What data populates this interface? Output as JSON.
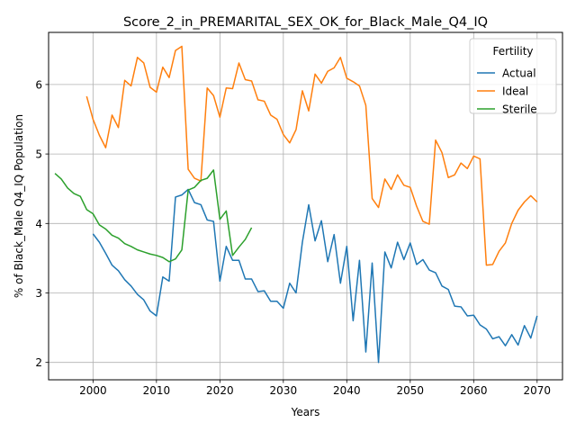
{
  "chart_data": {
    "type": "line",
    "title": "Score_2_in_PREMARITAL_SEX_OK_for_Black_Male_Q4_IQ",
    "xlabel": "Years",
    "ylabel": "% of Black_Male Q4_IQ Population",
    "xlim": [
      1993,
      2074
    ],
    "ylim": [
      1.75,
      6.75
    ],
    "xticks": [
      2000,
      2010,
      2020,
      2030,
      2040,
      2050,
      2060,
      2070
    ],
    "yticks": [
      2,
      3,
      4,
      5,
      6
    ],
    "grid": true,
    "legend": {
      "title": "Fertility",
      "placement": "top-right"
    },
    "series": [
      {
        "name": "Actual",
        "color": "#1f77b4",
        "x": [
          2000,
          2001,
          2002,
          2003,
          2004,
          2005,
          2006,
          2007,
          2008,
          2009,
          2010,
          2011,
          2012,
          2013,
          2014,
          2015,
          2016,
          2017,
          2018,
          2019,
          2020,
          2021,
          2022,
          2023,
          2024,
          2025,
          2026,
          2027,
          2028,
          2029,
          2030,
          2031,
          2032,
          2033,
          2034,
          2035,
          2036,
          2037,
          2038,
          2039,
          2040,
          2041,
          2042,
          2043,
          2044,
          2045,
          2046,
          2047,
          2048,
          2049,
          2050,
          2051,
          2052,
          2053,
          2054,
          2055,
          2056,
          2057,
          2058,
          2059,
          2060,
          2061,
          2062,
          2063,
          2064,
          2065,
          2066,
          2067,
          2068,
          2069,
          2070
        ],
        "y": [
          3.85,
          3.73,
          3.57,
          3.4,
          3.32,
          3.19,
          3.1,
          2.98,
          2.9,
          2.74,
          2.67,
          3.23,
          3.17,
          4.38,
          4.41,
          4.49,
          4.3,
          4.27,
          4.05,
          4.03,
          3.17,
          3.67,
          3.47,
          3.47,
          3.2,
          3.2,
          3.02,
          3.03,
          2.88,
          2.88,
          2.78,
          3.14,
          3.0,
          3.73,
          4.27,
          3.75,
          4.04,
          3.45,
          3.84,
          3.14,
          3.67,
          2.6,
          3.47,
          2.15,
          3.43,
          2.0,
          3.59,
          3.36,
          3.73,
          3.48,
          3.72,
          3.41,
          3.48,
          3.33,
          3.29,
          3.1,
          3.05,
          2.81,
          2.8,
          2.67,
          2.68,
          2.54,
          2.48,
          2.34,
          2.37,
          2.24,
          2.4,
          2.25,
          2.53,
          2.35,
          2.67
        ]
      },
      {
        "name": "Ideal",
        "color": "#ff7f0e",
        "x": [
          1999,
          2000,
          2001,
          2002,
          2003,
          2004,
          2005,
          2006,
          2007,
          2008,
          2009,
          2010,
          2011,
          2012,
          2013,
          2014,
          2015,
          2016,
          2017,
          2018,
          2019,
          2020,
          2021,
          2022,
          2023,
          2024,
          2025,
          2026,
          2027,
          2028,
          2029,
          2030,
          2031,
          2032,
          2033,
          2034,
          2035,
          2036,
          2037,
          2038,
          2039,
          2040,
          2041,
          2042,
          2043,
          2044,
          2045,
          2046,
          2047,
          2048,
          2049,
          2050,
          2051,
          2052,
          2053,
          2054,
          2055,
          2056,
          2057,
          2058,
          2059,
          2060,
          2061,
          2062,
          2063,
          2064,
          2065,
          2066,
          2067,
          2068,
          2069,
          2070
        ],
        "y": [
          5.83,
          5.5,
          5.27,
          5.09,
          5.56,
          5.38,
          6.06,
          5.98,
          6.39,
          6.31,
          5.96,
          5.89,
          6.25,
          6.1,
          6.49,
          6.55,
          4.78,
          4.65,
          4.61,
          5.95,
          5.84,
          5.53,
          5.95,
          5.94,
          6.31,
          6.07,
          6.05,
          5.78,
          5.76,
          5.56,
          5.5,
          5.28,
          5.16,
          5.35,
          5.91,
          5.62,
          6.15,
          6.02,
          6.19,
          6.24,
          6.39,
          6.09,
          6.04,
          5.98,
          5.7,
          4.36,
          4.23,
          4.64,
          4.49,
          4.7,
          4.55,
          4.52,
          4.25,
          4.03,
          3.99,
          5.2,
          5.02,
          4.66,
          4.7,
          4.87,
          4.79,
          4.97,
          4.93,
          3.4,
          3.41,
          3.6,
          3.72,
          4.0,
          4.19,
          4.31,
          4.4,
          4.31
        ]
      },
      {
        "name": "Sterile",
        "color": "#2ca02c",
        "x": [
          1994,
          1995,
          1996,
          1997,
          1998,
          1999,
          2000,
          2001,
          2002,
          2003,
          2004,
          2005,
          2006,
          2007,
          2008,
          2009,
          2010,
          2011,
          2012,
          2013,
          2014,
          2015,
          2016,
          2017,
          2018,
          2019,
          2020,
          2021,
          2022,
          2023,
          2024,
          2025
        ],
        "y": [
          4.72,
          4.64,
          4.51,
          4.43,
          4.39,
          4.2,
          4.14,
          3.98,
          3.92,
          3.83,
          3.79,
          3.71,
          3.67,
          3.62,
          3.59,
          3.56,
          3.54,
          3.51,
          3.45,
          3.49,
          3.62,
          4.48,
          4.52,
          4.62,
          4.65,
          4.77,
          4.06,
          4.18,
          3.54,
          3.66,
          3.77,
          3.94
        ]
      }
    ]
  }
}
